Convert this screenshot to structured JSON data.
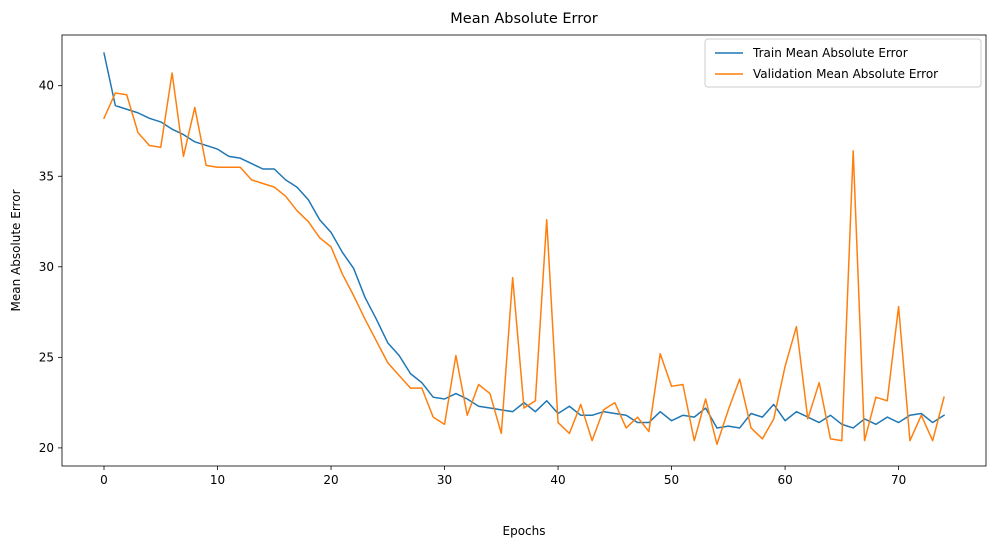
{
  "chart_data": {
    "type": "line",
    "title": "Mean Absolute Error",
    "xlabel": "Epochs",
    "ylabel": "Mean Absolute Error",
    "xlim": [
      -3.7,
      77.7
    ],
    "ylim": [
      19.0,
      42.8
    ],
    "xticks": [
      0,
      10,
      20,
      30,
      40,
      50,
      60,
      70
    ],
    "yticks": [
      20,
      25,
      30,
      35,
      40
    ],
    "grid": false,
    "legend_position": "top-right",
    "x": [
      0,
      1,
      2,
      3,
      4,
      5,
      6,
      7,
      8,
      9,
      10,
      11,
      12,
      13,
      14,
      15,
      16,
      17,
      18,
      19,
      20,
      21,
      22,
      23,
      24,
      25,
      26,
      27,
      28,
      29,
      30,
      31,
      32,
      33,
      34,
      35,
      36,
      37,
      38,
      39,
      40,
      41,
      42,
      43,
      44,
      45,
      46,
      47,
      48,
      49,
      50,
      51,
      52,
      53,
      54,
      55,
      56,
      57,
      58,
      59,
      60,
      61,
      62,
      63,
      64,
      65,
      66,
      67,
      68,
      69,
      70,
      71,
      72,
      73,
      74
    ],
    "series": [
      {
        "name": "Train Mean Absolute Error",
        "color": "#1f77b4",
        "values": [
          41.8,
          38.9,
          38.7,
          38.5,
          38.2,
          38.0,
          37.6,
          37.3,
          36.9,
          36.7,
          36.5,
          36.1,
          36.0,
          35.7,
          35.4,
          35.4,
          34.8,
          34.4,
          33.7,
          32.6,
          31.9,
          30.8,
          29.9,
          28.3,
          27.1,
          25.8,
          25.1,
          24.1,
          23.6,
          22.8,
          22.7,
          23.0,
          22.7,
          22.3,
          22.2,
          22.1,
          22.0,
          22.5,
          22.0,
          22.6,
          21.9,
          22.3,
          21.8,
          21.8,
          22.0,
          21.9,
          21.8,
          21.4,
          21.4,
          22.0,
          21.5,
          21.8,
          21.7,
          22.2,
          21.1,
          21.2,
          21.1,
          21.9,
          21.7,
          22.4,
          21.5,
          22.0,
          21.7,
          21.4,
          21.8,
          21.3,
          21.1,
          21.6,
          21.3,
          21.7,
          21.4,
          21.8,
          21.9,
          21.4,
          21.8
        ]
      },
      {
        "name": "Validation Mean Absolute Error",
        "color": "#ff7f0e",
        "values": [
          38.2,
          39.6,
          39.5,
          37.4,
          36.7,
          36.6,
          40.7,
          36.1,
          38.8,
          35.6,
          35.5,
          35.5,
          35.5,
          34.8,
          34.6,
          34.4,
          33.9,
          33.1,
          32.5,
          31.6,
          31.1,
          29.6,
          28.4,
          27.1,
          25.9,
          24.7,
          24.0,
          23.3,
          23.3,
          21.7,
          21.3,
          25.1,
          21.8,
          23.5,
          23.0,
          20.8,
          29.4,
          22.2,
          22.6,
          32.6,
          21.4,
          20.8,
          22.4,
          20.4,
          22.1,
          22.5,
          21.1,
          21.7,
          20.9,
          25.2,
          23.4,
          23.5,
          20.4,
          22.7,
          20.2,
          22.1,
          23.8,
          21.1,
          20.5,
          21.6,
          24.5,
          26.7,
          21.6,
          23.6,
          20.5,
          20.4,
          36.4,
          20.4,
          22.8,
          22.6,
          27.8,
          20.4,
          21.8,
          20.4,
          22.8
        ]
      }
    ]
  }
}
